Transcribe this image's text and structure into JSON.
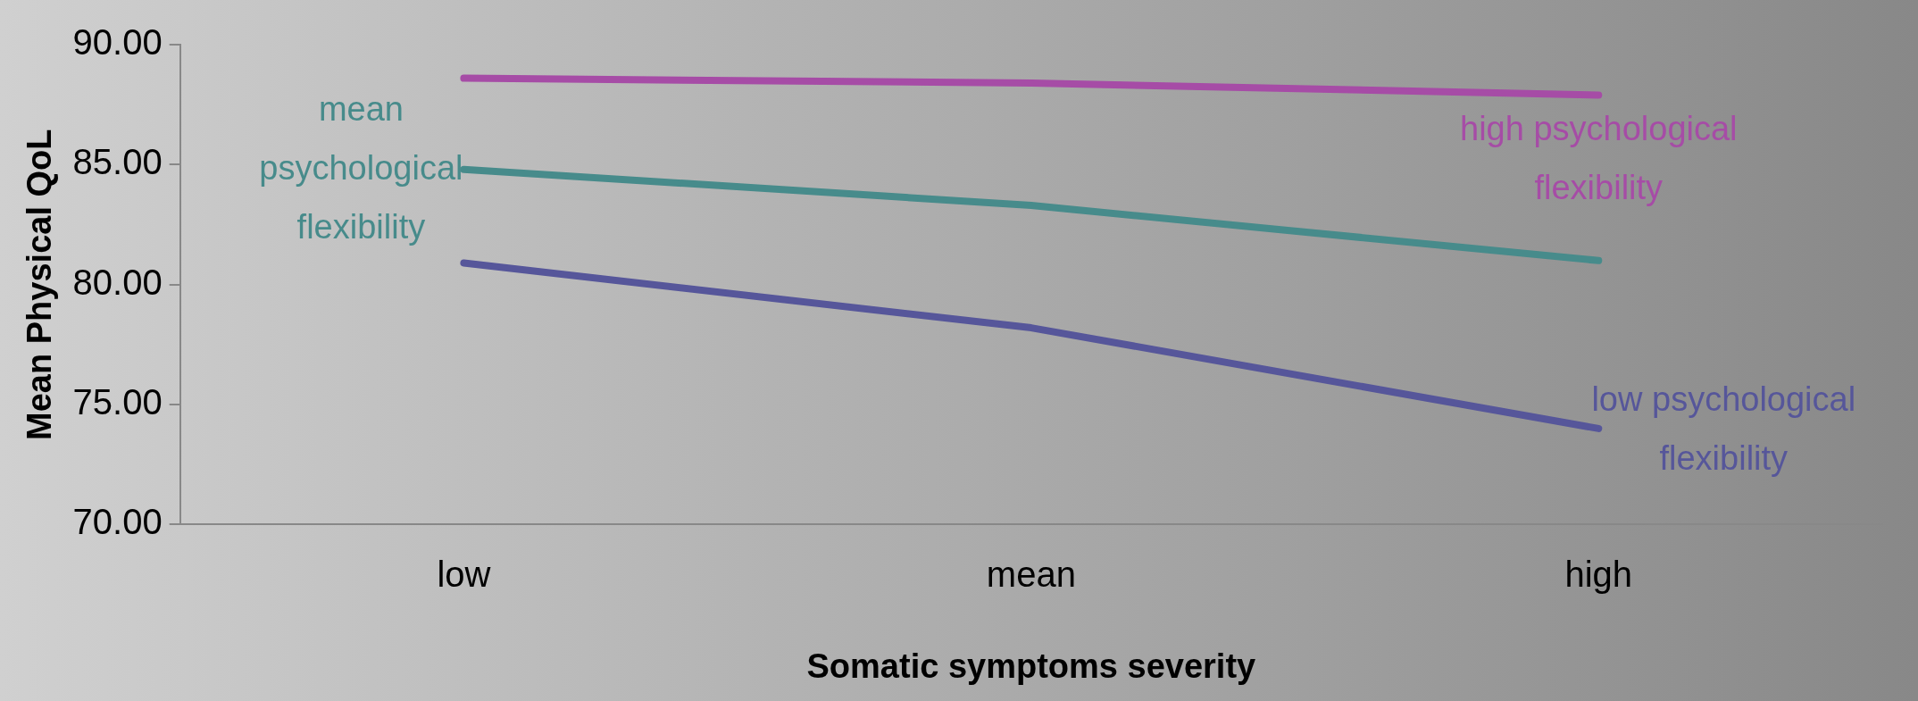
{
  "chart_data": {
    "type": "line",
    "xlabel": "Somatic symptoms severity",
    "ylabel": "Mean Physical QoL",
    "categories": [
      "low",
      "mean",
      "high"
    ],
    "series": [
      {
        "name": "high psychological flexibility",
        "color": "#a64ca6",
        "values": [
          88.6,
          88.4,
          87.9
        ]
      },
      {
        "name": "mean psychological flexibility",
        "color": "#478b8b",
        "values": [
          84.8,
          83.3,
          81.0
        ]
      },
      {
        "name": "low psychological flexibility",
        "color": "#56569a",
        "values": [
          80.9,
          78.2,
          74.0
        ]
      }
    ],
    "ylim": [
      70,
      90
    ],
    "yticks": [
      {
        "value": 70,
        "label": "70.00"
      },
      {
        "value": 75,
        "label": "75.00"
      },
      {
        "value": 80,
        "label": "80.00"
      },
      {
        "value": 85,
        "label": "85.00"
      },
      {
        "value": 90,
        "label": "90.00"
      }
    ],
    "grid": false,
    "legend": false,
    "marker": "none",
    "line_style": "solid"
  }
}
